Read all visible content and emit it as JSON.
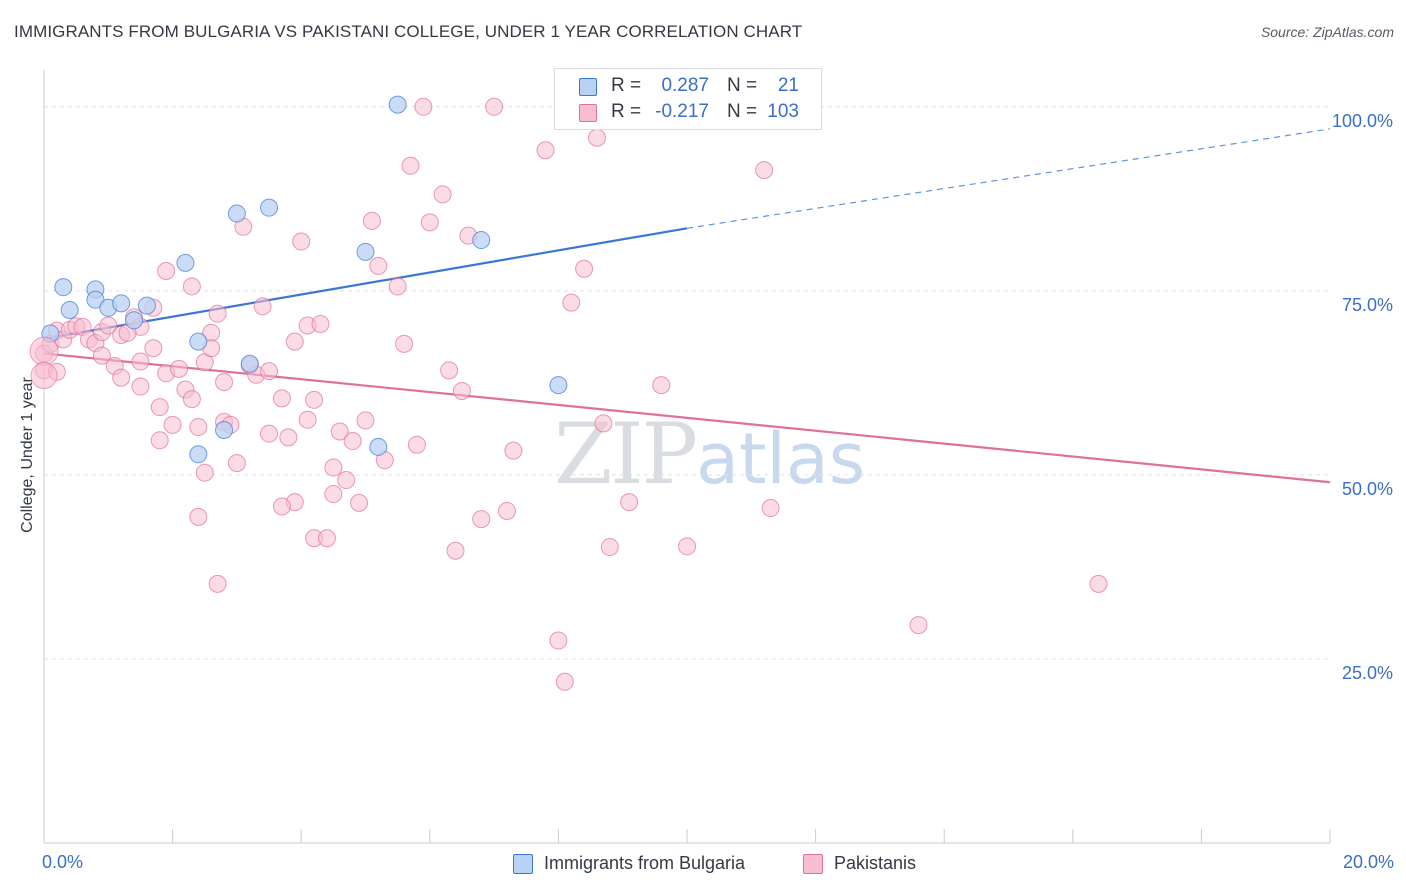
{
  "title": "IMMIGRANTS FROM BULGARIA VS PAKISTANI COLLEGE, UNDER 1 YEAR CORRELATION CHART",
  "source": "Source: ZipAtlas.com",
  "watermark": {
    "zip": "ZIP",
    "atlas": "atlas"
  },
  "colors": {
    "blue": "#3a78d4",
    "blue_fill": "#b9d1f3",
    "pink": "#e0709a",
    "pink_fill": "#f7bdd0",
    "axis_text": "#3a6fc4"
  },
  "legend_top": {
    "rows": [
      {
        "r_label": "R =",
        "r_value": "0.287",
        "n_label": "N =",
        "n_value": "21"
      },
      {
        "r_label": "R =",
        "r_value": "-0.217",
        "n_label": "N =",
        "n_value": "103"
      }
    ]
  },
  "legend_bottom": {
    "items": [
      "Immigrants from Bulgaria",
      "Pakistanis"
    ]
  },
  "chart_data": {
    "type": "scatter",
    "title": "IMMIGRANTS FROM BULGARIA VS PAKISTANI COLLEGE, UNDER 1 YEAR CORRELATION CHART",
    "xlabel": "",
    "ylabel": "College, Under 1 year",
    "xlim": [
      0,
      20
    ],
    "ylim": [
      0,
      105
    ],
    "x_tick_labels": [
      "0.0%",
      "20.0%"
    ],
    "y_ticks": [
      25,
      50,
      75,
      100
    ],
    "y_tick_labels": [
      "25.0%",
      "50.0%",
      "75.0%",
      "100.0%"
    ],
    "grid": true,
    "legend_position": "top-center",
    "series": [
      {
        "name": "Immigrants from Bulgaria",
        "r": 0.287,
        "n": 21,
        "points": [
          [
            0.1,
            69.2
          ],
          [
            0.3,
            75.5
          ],
          [
            0.4,
            72.4
          ],
          [
            0.8,
            75.2
          ],
          [
            0.8,
            73.8
          ],
          [
            1.0,
            72.7
          ],
          [
            1.2,
            73.3
          ],
          [
            2.2,
            78.8
          ],
          [
            2.4,
            68.1
          ],
          [
            2.4,
            52.8
          ],
          [
            2.8,
            56.1
          ],
          [
            3.0,
            85.5
          ],
          [
            3.2,
            65.1
          ],
          [
            3.5,
            86.3
          ],
          [
            5.0,
            80.3
          ],
          [
            5.2,
            53.8
          ],
          [
            5.5,
            100.3
          ],
          [
            6.8,
            81.9
          ],
          [
            8.0,
            62.2
          ],
          [
            1.4,
            71.0
          ],
          [
            1.6,
            73.0
          ]
        ],
        "trend": {
          "x0": 0,
          "y0": 68.5,
          "x1": 10.0,
          "y1": 83.5,
          "dashed_to": [
            20,
            97.0
          ]
        }
      },
      {
        "name": "Pakistanis",
        "r": -0.217,
        "n": 103,
        "points": [
          [
            0.0,
            66.5
          ],
          [
            0.0,
            64.2
          ],
          [
            0.1,
            67.8
          ],
          [
            0.2,
            69.6
          ],
          [
            0.3,
            68.4
          ],
          [
            0.4,
            69.7
          ],
          [
            0.5,
            70.2
          ],
          [
            0.6,
            70.1
          ],
          [
            0.7,
            68.4
          ],
          [
            0.8,
            67.9
          ],
          [
            0.9,
            69.4
          ],
          [
            0.9,
            66.2
          ],
          [
            1.0,
            70.3
          ],
          [
            1.1,
            64.8
          ],
          [
            1.2,
            69.0
          ],
          [
            1.2,
            63.2
          ],
          [
            1.4,
            71.4
          ],
          [
            1.5,
            65.4
          ],
          [
            1.5,
            62.0
          ],
          [
            1.5,
            70.1
          ],
          [
            1.7,
            72.7
          ],
          [
            1.7,
            67.2
          ],
          [
            1.8,
            54.7
          ],
          [
            1.8,
            59.2
          ],
          [
            1.9,
            77.7
          ],
          [
            1.9,
            63.8
          ],
          [
            2.0,
            56.8
          ],
          [
            2.1,
            64.4
          ],
          [
            2.2,
            61.6
          ],
          [
            2.3,
            75.6
          ],
          [
            2.3,
            60.3
          ],
          [
            2.4,
            56.5
          ],
          [
            2.4,
            44.3
          ],
          [
            2.5,
            50.3
          ],
          [
            2.5,
            65.3
          ],
          [
            2.6,
            69.3
          ],
          [
            2.6,
            67.2
          ],
          [
            2.7,
            71.9
          ],
          [
            2.8,
            62.6
          ],
          [
            2.8,
            57.2
          ],
          [
            2.9,
            56.8
          ],
          [
            3.0,
            51.6
          ],
          [
            3.1,
            83.7
          ],
          [
            3.2,
            64.9
          ],
          [
            3.3,
            63.6
          ],
          [
            3.4,
            72.9
          ],
          [
            3.5,
            64.1
          ],
          [
            3.5,
            55.6
          ],
          [
            3.7,
            60.4
          ],
          [
            3.8,
            55.1
          ],
          [
            3.9,
            46.3
          ],
          [
            3.9,
            68.1
          ],
          [
            4.1,
            57.5
          ],
          [
            4.1,
            70.3
          ],
          [
            4.2,
            41.4
          ],
          [
            4.2,
            60.2
          ],
          [
            4.3,
            70.5
          ],
          [
            4.4,
            41.4
          ],
          [
            4.5,
            51.0
          ],
          [
            4.5,
            47.4
          ],
          [
            4.6,
            55.9
          ],
          [
            4.7,
            49.3
          ],
          [
            4.8,
            54.6
          ],
          [
            4.9,
            46.2
          ],
          [
            5.0,
            57.4
          ],
          [
            5.1,
            84.5
          ],
          [
            5.2,
            78.4
          ],
          [
            5.3,
            52.0
          ],
          [
            5.5,
            75.6
          ],
          [
            5.6,
            67.8
          ],
          [
            5.7,
            92.0
          ],
          [
            5.8,
            54.1
          ],
          [
            6.0,
            84.3
          ],
          [
            6.2,
            88.1
          ],
          [
            6.3,
            64.2
          ],
          [
            6.4,
            39.7
          ],
          [
            6.5,
            61.4
          ],
          [
            6.6,
            82.5
          ],
          [
            6.8,
            44.0
          ],
          [
            7.2,
            45.1
          ],
          [
            7.3,
            53.3
          ],
          [
            7.8,
            94.1
          ],
          [
            8.0,
            27.5
          ],
          [
            8.1,
            21.9
          ],
          [
            8.2,
            73.4
          ],
          [
            8.4,
            78.0
          ],
          [
            8.6,
            95.8
          ],
          [
            8.7,
            57.0
          ],
          [
            8.8,
            40.2
          ],
          [
            9.1,
            46.3
          ],
          [
            9.6,
            62.2
          ],
          [
            10.0,
            40.3
          ],
          [
            11.2,
            91.4
          ],
          [
            11.3,
            45.5
          ],
          [
            13.6,
            29.6
          ],
          [
            16.4,
            35.2
          ],
          [
            5.9,
            100.0
          ],
          [
            4.0,
            81.7
          ],
          [
            2.7,
            35.2
          ],
          [
            3.7,
            45.7
          ],
          [
            7.0,
            100.0
          ],
          [
            0.2,
            64.0
          ],
          [
            1.3,
            69.3
          ]
        ],
        "trend": {
          "x0": 0,
          "y0": 66.5,
          "x1": 20,
          "y1": 49.0
        }
      }
    ]
  }
}
